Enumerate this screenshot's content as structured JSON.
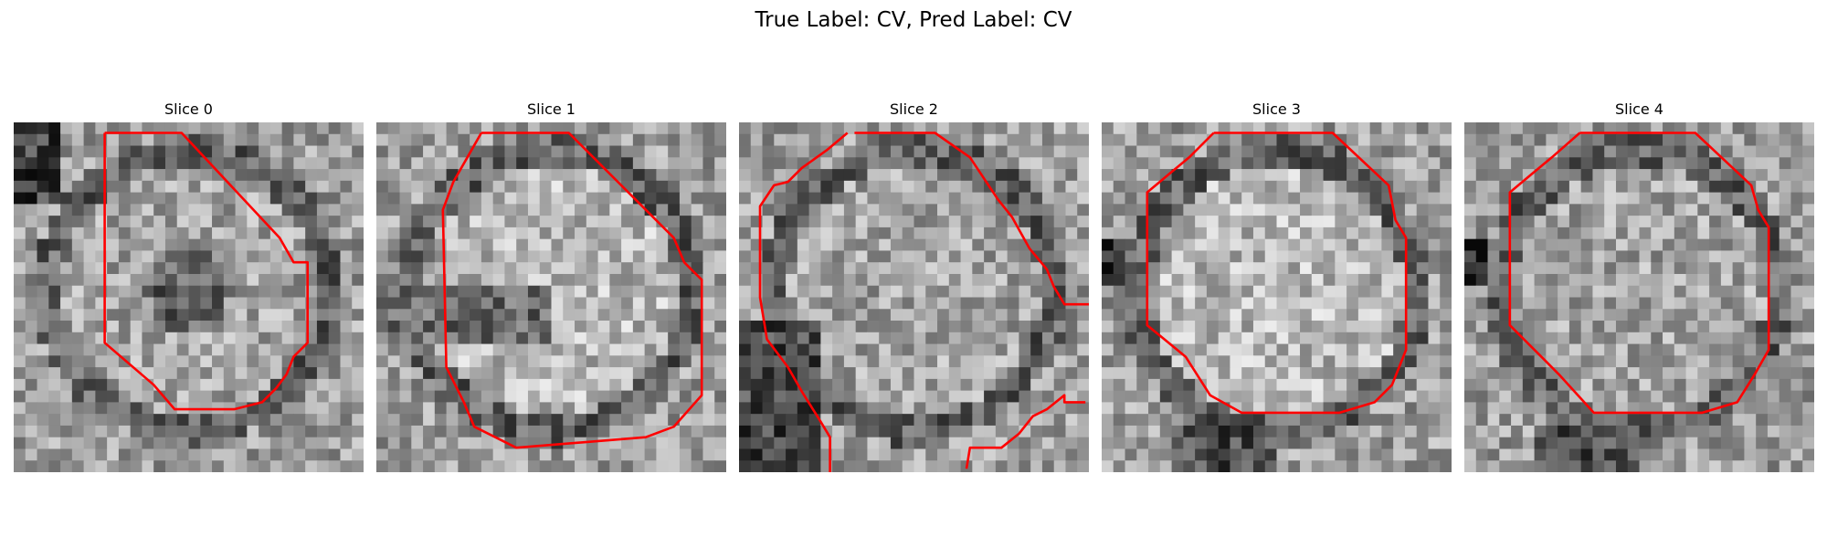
{
  "figure": {
    "title": "True Label: CV, Pred Label: CV"
  },
  "slices": [
    {
      "title": "Slice 0",
      "seed": 11,
      "contour_color": "#ff0000"
    },
    {
      "title": "Slice 1",
      "seed": 23,
      "contour_color": "#ff0000"
    },
    {
      "title": "Slice 2",
      "seed": 37,
      "contour_color": "#ff0000"
    },
    {
      "title": "Slice 3",
      "seed": 41,
      "contour_color": "#ff0000"
    },
    {
      "title": "Slice 4",
      "seed": 53,
      "contour_color": "#ff0000"
    }
  ],
  "colors": {
    "contour": "#ff0000",
    "background": "#ffffff"
  }
}
